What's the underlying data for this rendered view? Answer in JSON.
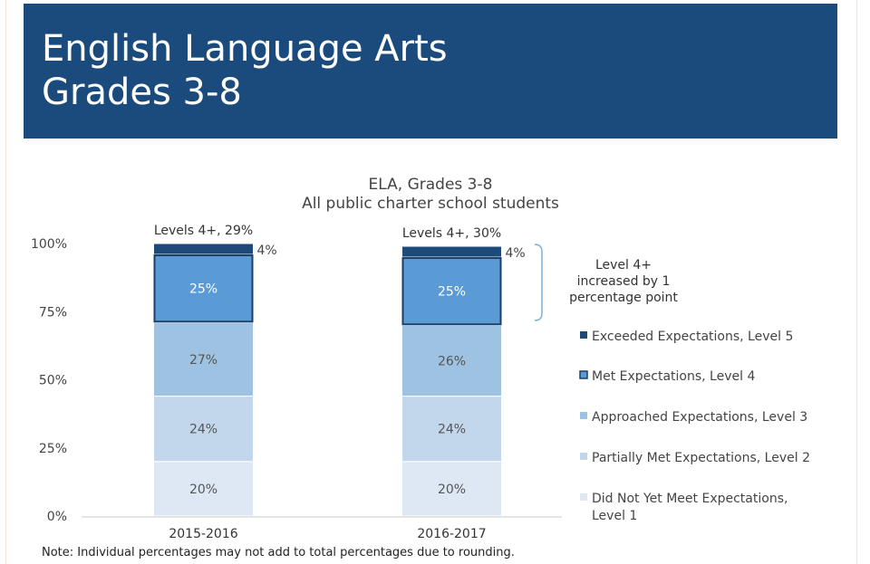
{
  "header": {
    "title_line1": "English Language Arts",
    "title_line2": "Grades 3-8"
  },
  "chart_data": {
    "type": "bar",
    "stacked": true,
    "title": "ELA, Grades 3-8",
    "subtitle": "All public charter school students",
    "categories": [
      "2015-2016",
      "2016-2017"
    ],
    "y_ticks": [
      "0%",
      "25%",
      "50%",
      "75%",
      "100%"
    ],
    "ylim": [
      0,
      100
    ],
    "series": [
      {
        "name": "Did Not Yet Meet Expectations, Level 1",
        "values": [
          20,
          20
        ],
        "labels": [
          "20%",
          "20%"
        ],
        "color": "#dde8f4"
      },
      {
        "name": "Partially Met Expectations, Level 2",
        "values": [
          24,
          24
        ],
        "labels": [
          "24%",
          "24%"
        ],
        "color": "#c3d7ec"
      },
      {
        "name": "Approached Expectations, Level 3",
        "values": [
          27,
          26
        ],
        "labels": [
          "27%",
          "26%"
        ],
        "color": "#9ec2e2"
      },
      {
        "name": "Met Expectations, Level 4",
        "values": [
          25,
          25
        ],
        "labels": [
          "25%",
          "25%"
        ],
        "color": "#5b9bd5"
      },
      {
        "name": "Exceeded Expectations, Level 5",
        "values": [
          4,
          4
        ],
        "labels": [
          "4%",
          "4%"
        ],
        "color": "#1e4a79"
      }
    ],
    "top_labels": [
      "Levels 4+, 29%",
      "Levels 4+, 30%"
    ],
    "legend_position": "right",
    "annotation": [
      "Level 4+",
      "increased by 1",
      "percentage point"
    ],
    "note": "Note: Individual percentages may not add to total percentages due to rounding."
  }
}
